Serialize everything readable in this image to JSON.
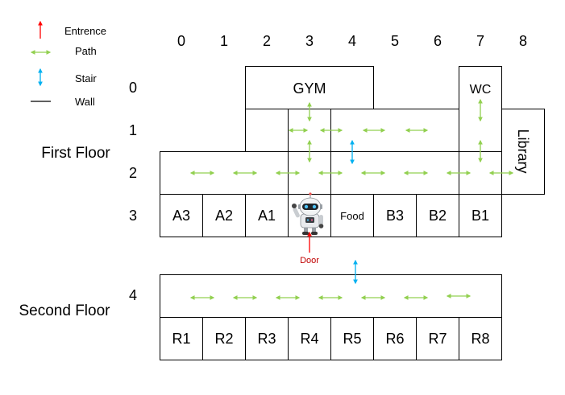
{
  "legend": {
    "entrance": "Entrence",
    "path": "Path",
    "stair": "Stair",
    "wall": "Wall"
  },
  "columns": [
    "0",
    "1",
    "2",
    "3",
    "4",
    "5",
    "6",
    "7",
    "8"
  ],
  "rows": [
    "0",
    "1",
    "2",
    "3",
    "4"
  ],
  "floor_labels": {
    "first": "First Floor",
    "second": "Second Floor"
  },
  "rooms": {
    "gym": "GYM",
    "wc": "WC",
    "library": "Library",
    "row3": [
      "A3",
      "A2",
      "A1",
      "",
      "Food",
      "B3",
      "B2",
      "B1"
    ],
    "row5": [
      "R1",
      "R2",
      "R3",
      "R4",
      "R5",
      "R6",
      "R7",
      "R8"
    ]
  },
  "door_label": "Door",
  "colors": {
    "entrance": "#ff0000",
    "path": "#92d050",
    "stair": "#00b0f0",
    "wall": "#000000",
    "door_text": "#c00000"
  }
}
